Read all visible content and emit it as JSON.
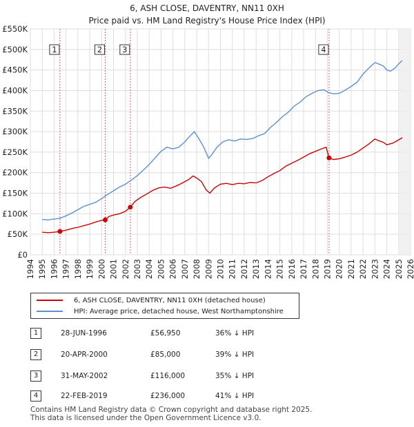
{
  "chart_data": {
    "type": "line",
    "title": "6, ASH CLOSE, DAVENTRY, NN11 0XH",
    "subtitle": "Price paid vs. HM Land Registry's House Price Index (HPI)",
    "xlim": [
      1994,
      2026
    ],
    "ylim": [
      0,
      550000
    ],
    "x_ticks": [
      "1994",
      "1995",
      "1996",
      "1997",
      "1998",
      "1999",
      "2000",
      "2001",
      "2002",
      "2003",
      "2004",
      "2005",
      "2006",
      "2007",
      "2008",
      "2009",
      "2010",
      "2011",
      "2012",
      "2013",
      "2014",
      "2015",
      "2016",
      "2017",
      "2018",
      "2019",
      "2020",
      "2021",
      "2022",
      "2023",
      "2024",
      "2025",
      "2026"
    ],
    "y_ticks": [
      {
        "value": 0,
        "label": "£0"
      },
      {
        "value": 50000,
        "label": "£50K"
      },
      {
        "value": 100000,
        "label": "£100K"
      },
      {
        "value": 150000,
        "label": "£150K"
      },
      {
        "value": 200000,
        "label": "£200K"
      },
      {
        "value": 250000,
        "label": "£250K"
      },
      {
        "value": 300000,
        "label": "£300K"
      },
      {
        "value": 350000,
        "label": "£350K"
      },
      {
        "value": 400000,
        "label": "£400K"
      },
      {
        "value": 450000,
        "label": "£450K"
      },
      {
        "value": 500000,
        "label": "£500K"
      },
      {
        "value": 550000,
        "label": "£550K"
      }
    ],
    "series": [
      {
        "name": "6, ASH CLOSE, DAVENTRY, NN11 0XH (detached house)",
        "color": "#cc0000",
        "x": [
          1995.0,
          1995.5,
          1996.0,
          1996.49,
          1997.0,
          1997.5,
          1998.0,
          1998.5,
          1999.0,
          1999.5,
          2000.0,
          2000.3,
          2000.6,
          2001.0,
          2001.5,
          2002.0,
          2002.41,
          2002.8,
          2003.3,
          2003.8,
          2004.3,
          2004.8,
          2005.3,
          2005.8,
          2006.3,
          2006.8,
          2007.3,
          2007.7,
          2008.0,
          2008.4,
          2008.8,
          2009.1,
          2009.5,
          2010.0,
          2010.5,
          2011.0,
          2011.5,
          2012.0,
          2012.5,
          2013.0,
          2013.5,
          2014.0,
          2014.5,
          2015.0,
          2015.5,
          2016.0,
          2016.5,
          2017.0,
          2017.5,
          2018.0,
          2018.5,
          2018.9,
          2019.14,
          2019.5,
          2020.0,
          2020.5,
          2021.0,
          2021.5,
          2022.0,
          2022.5,
          2023.0,
          2023.3,
          2023.7,
          2024.0,
          2024.5,
          2025.0,
          2025.3
        ],
        "values": [
          55000,
          54000,
          55000,
          56950,
          60000,
          64000,
          67000,
          71000,
          75000,
          80000,
          84000,
          85000,
          93000,
          97000,
          100000,
          106000,
          116000,
          130000,
          140000,
          148000,
          157000,
          163000,
          165000,
          162000,
          168000,
          175000,
          183000,
          192000,
          187000,
          178000,
          158000,
          150000,
          163000,
          172000,
          174000,
          171000,
          174000,
          173000,
          176000,
          175000,
          181000,
          190000,
          198000,
          205000,
          216000,
          223000,
          230000,
          238000,
          246000,
          252000,
          258000,
          262000,
          236000,
          232000,
          234000,
          238000,
          243000,
          250000,
          260000,
          270000,
          282000,
          278000,
          274000,
          268000,
          272000,
          280000,
          285000
        ]
      },
      {
        "name": "HPI: Average price, detached house, West Northamptonshire",
        "color": "#5b8fd0",
        "x": [
          1995.0,
          1995.5,
          1996.0,
          1996.5,
          1997.0,
          1997.5,
          1998.0,
          1998.5,
          1999.0,
          1999.5,
          2000.0,
          2000.5,
          2001.0,
          2001.5,
          2002.0,
          2002.5,
          2003.0,
          2003.5,
          2004.0,
          2004.5,
          2005.0,
          2005.5,
          2006.0,
          2006.5,
          2007.0,
          2007.4,
          2007.8,
          2008.2,
          2008.6,
          2009.0,
          2009.3,
          2009.7,
          2010.2,
          2010.7,
          2011.2,
          2011.7,
          2012.2,
          2012.7,
          2013.2,
          2013.7,
          2014.2,
          2014.7,
          2015.2,
          2015.7,
          2016.2,
          2016.7,
          2017.2,
          2017.7,
          2018.2,
          2018.7,
          2019.1,
          2019.5,
          2020.0,
          2020.5,
          2021.0,
          2021.5,
          2022.0,
          2022.5,
          2023.0,
          2023.3,
          2023.7,
          2024.0,
          2024.3,
          2024.7,
          2025.0,
          2025.3
        ],
        "values": [
          86000,
          85000,
          87000,
          89000,
          95000,
          102000,
          110000,
          118000,
          123000,
          128000,
          137000,
          147000,
          156000,
          165000,
          172000,
          182000,
          193000,
          206000,
          220000,
          236000,
          252000,
          262000,
          258000,
          262000,
          275000,
          288000,
          300000,
          282000,
          262000,
          235000,
          245000,
          262000,
          275000,
          280000,
          277000,
          282000,
          281000,
          283000,
          290000,
          295000,
          310000,
          322000,
          336000,
          347000,
          362000,
          372000,
          385000,
          393000,
          400000,
          402000,
          395000,
          392000,
          393000,
          401000,
          410000,
          420000,
          440000,
          455000,
          468000,
          465000,
          460000,
          450000,
          447000,
          455000,
          465000,
          473000
        ]
      }
    ],
    "sales": [
      {
        "label": "1",
        "x": 1996.49,
        "value": 56950
      },
      {
        "label": "2",
        "x": 2000.3,
        "value": 85000
      },
      {
        "label": "3",
        "x": 2002.41,
        "value": 116000
      },
      {
        "label": "4",
        "x": 2019.14,
        "value": 236000
      }
    ]
  },
  "legend": {
    "property_label": "6, ASH CLOSE, DAVENTRY, NN11 0XH (detached house)",
    "hpi_label": "HPI: Average price, detached house, West Northamptonshire"
  },
  "transactions": [
    {
      "num": "1",
      "date": "28-JUN-1996",
      "price": "£56,950",
      "delta": "36% ↓ HPI"
    },
    {
      "num": "2",
      "date": "20-APR-2000",
      "price": "£85,000",
      "delta": "39% ↓ HPI"
    },
    {
      "num": "3",
      "date": "31-MAY-2002",
      "price": "£116,000",
      "delta": "35% ↓ HPI"
    },
    {
      "num": "4",
      "date": "22-FEB-2019",
      "price": "£236,000",
      "delta": "41% ↓ HPI"
    }
  ],
  "footer": {
    "line1": "Contains HM Land Registry data © Crown copyright and database right 2025.",
    "line2": "This data is licensed under the Open Government Licence v3.0."
  }
}
